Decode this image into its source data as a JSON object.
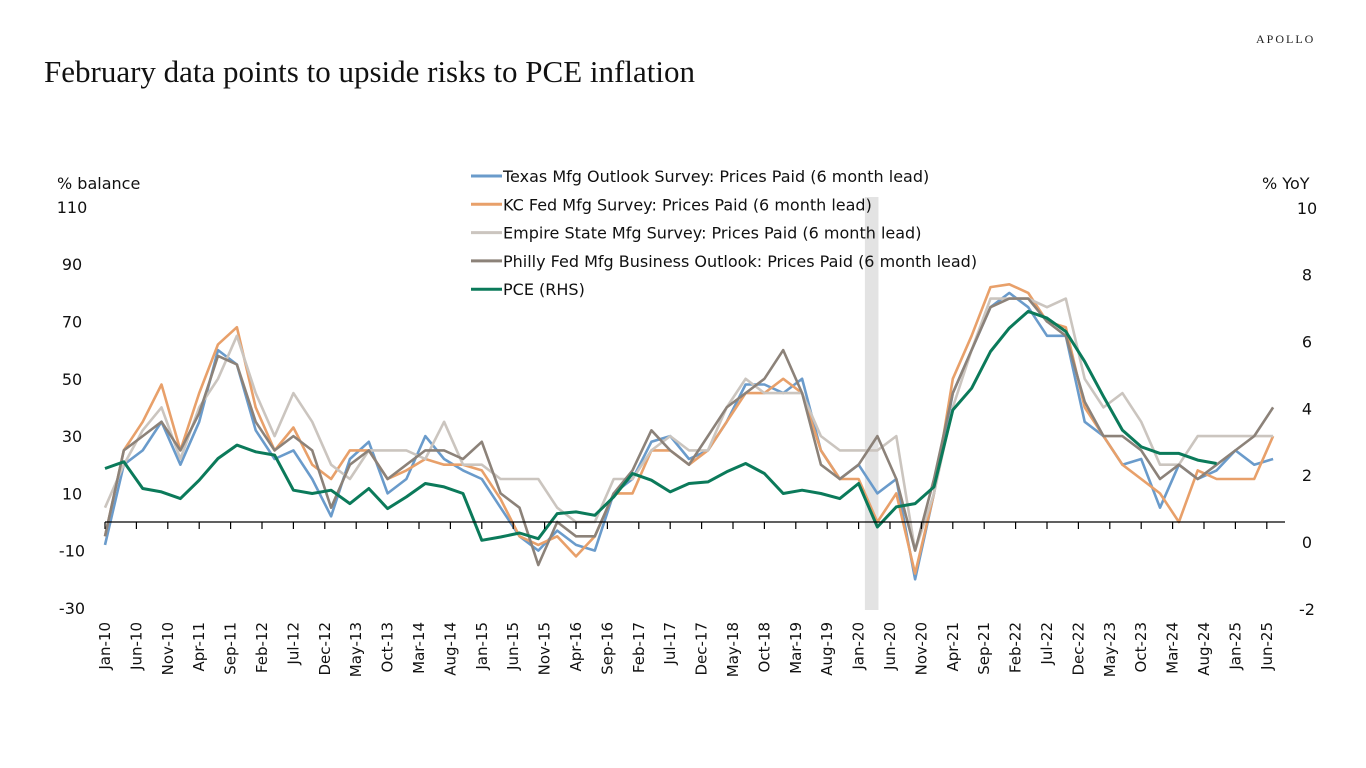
{
  "logo": "APOLLO",
  "title": "February data points to upside risks to PCE inflation",
  "chart_data": {
    "type": "line",
    "title": "February data points to upside risks to PCE inflation",
    "ylabel_left": "% balance",
    "ylabel_right": "% YoY",
    "ylim_left": [
      -30,
      110
    ],
    "ylim_right": [
      -2,
      10
    ],
    "yticks_left": [
      "110",
      "90",
      "70",
      "50",
      "30",
      "10",
      "-10",
      "-30"
    ],
    "yticks_right": [
      "10",
      "8",
      "6",
      "4",
      "2",
      "0",
      "-2"
    ],
    "xticks": [
      "Jan-10",
      "Jun-10",
      "Nov-10",
      "Apr-11",
      "Sep-11",
      "Feb-12",
      "Jul-12",
      "Dec-12",
      "May-13",
      "Oct-13",
      "Mar-14",
      "Aug-14",
      "Jan-15",
      "Jun-15",
      "Nov-15",
      "Apr-16",
      "Sep-16",
      "Feb-17",
      "Jul-17",
      "Dec-17",
      "May-18",
      "Oct-18",
      "Mar-19",
      "Aug-19",
      "Jan-20",
      "Jun-20",
      "Nov-20",
      "Apr-21",
      "Sep-21",
      "Feb-22",
      "Jul-22",
      "Dec-22",
      "May-23",
      "Oct-23",
      "Mar-24",
      "Aug-24",
      "Jan-25",
      "Jun-25"
    ],
    "shaded_period": [
      "2020-02",
      "2020-04"
    ],
    "grid": false,
    "legend_position": "top-center",
    "x_surveys": "quarterly 2010-01 to 2025-07",
    "x_pce": "quarterly 2010-01 to 2024-10",
    "series": [
      {
        "name": "Texas Mfg Outlook Survey: Prices Paid (6 month lead)",
        "axis": "left",
        "color": "#6a9bcb",
        "values": [
          -8,
          20,
          25,
          35,
          20,
          35,
          60,
          55,
          32,
          22,
          25,
          15,
          2,
          22,
          28,
          10,
          15,
          30,
          22,
          18,
          15,
          5,
          -5,
          -10,
          -3,
          -8,
          -10,
          10,
          15,
          28,
          30,
          22,
          25,
          35,
          48,
          48,
          45,
          50,
          25,
          15,
          20,
          10,
          15,
          -20,
          10,
          45,
          60,
          75,
          80,
          75,
          65,
          65,
          35,
          30,
          20,
          22,
          5,
          20,
          15,
          18,
          25,
          20,
          22
        ]
      },
      {
        "name": "KC Fed Mfg Survey: Prices Paid (6 month lead)",
        "axis": "left",
        "color": "#e8a06a",
        "values": [
          -5,
          25,
          35,
          48,
          25,
          45,
          62,
          68,
          40,
          25,
          33,
          20,
          15,
          25,
          25,
          15,
          18,
          22,
          20,
          20,
          18,
          8,
          -5,
          -8,
          -5,
          -12,
          -5,
          10,
          10,
          25,
          25,
          20,
          25,
          35,
          45,
          45,
          50,
          45,
          25,
          15,
          15,
          0,
          10,
          -18,
          10,
          50,
          65,
          82,
          83,
          80,
          70,
          68,
          40,
          30,
          20,
          15,
          10,
          0,
          18,
          15,
          15,
          15,
          30
        ]
      },
      {
        "name": "Empire State Mfg Survey: Prices Paid (6 month lead)",
        "axis": "left",
        "color": "#cbc5bf",
        "values": [
          5,
          20,
          32,
          40,
          22,
          40,
          50,
          65,
          45,
          30,
          45,
          35,
          20,
          15,
          25,
          25,
          25,
          22,
          35,
          20,
          20,
          15,
          15,
          15,
          5,
          0,
          0,
          15,
          15,
          25,
          30,
          25,
          25,
          40,
          50,
          45,
          45,
          45,
          30,
          25,
          25,
          25,
          30,
          -10,
          10,
          40,
          60,
          78,
          78,
          78,
          75,
          78,
          50,
          40,
          45,
          35,
          20,
          20,
          30,
          30,
          30,
          30,
          30
        ]
      },
      {
        "name": "Philly Fed Mfg Business Outlook: Prices Paid (6 month lead)",
        "axis": "left",
        "color": "#8c8279",
        "values": [
          -5,
          25,
          30,
          35,
          25,
          38,
          58,
          55,
          35,
          25,
          30,
          25,
          5,
          20,
          25,
          15,
          20,
          25,
          25,
          22,
          28,
          10,
          5,
          -15,
          0,
          -5,
          -5,
          10,
          18,
          32,
          25,
          20,
          30,
          40,
          45,
          50,
          60,
          45,
          20,
          15,
          20,
          30,
          15,
          -10,
          15,
          45,
          60,
          75,
          78,
          78,
          70,
          65,
          42,
          30,
          30,
          25,
          15,
          20,
          15,
          20,
          25,
          30,
          40
        ]
      },
      {
        "name": "PCE (RHS)",
        "axis": "right",
        "color": "#0b7a5a",
        "values": [
          2.2,
          2.4,
          1.6,
          1.5,
          1.3,
          1.85,
          2.5,
          2.9,
          2.7,
          2.6,
          1.55,
          1.45,
          1.55,
          1.15,
          1.6,
          1.0,
          1.35,
          1.75,
          1.65,
          1.45,
          0.05,
          0.15,
          0.27,
          0.1,
          0.85,
          0.9,
          0.8,
          1.35,
          2.05,
          1.85,
          1.5,
          1.75,
          1.8,
          2.1,
          2.35,
          2.05,
          1.45,
          1.55,
          1.45,
          1.3,
          1.75,
          0.45,
          1.05,
          1.15,
          1.65,
          3.95,
          4.6,
          5.7,
          6.4,
          6.9,
          6.7,
          6.3,
          5.4,
          4.35,
          3.35,
          2.85,
          2.65,
          2.65,
          2.45,
          2.35
        ]
      }
    ]
  }
}
